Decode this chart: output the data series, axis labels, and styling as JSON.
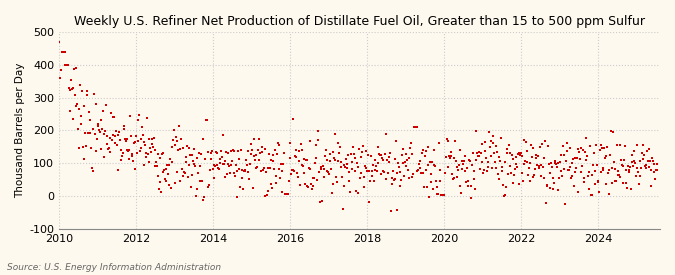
{
  "title": "Weekly U.S. Refiner Net Production of Distillate Fuel Oil, Greater than 15 to 500 ppm Sulfur",
  "ylabel": "Thousand Barrels per Day",
  "source": "Source: U.S. Energy Information Administration",
  "background_color": "#fef9ef",
  "dot_color": "#cc0000",
  "dot_size": 2.5,
  "ylim": [
    -100,
    500
  ],
  "yticks": [
    -100,
    0,
    100,
    200,
    300,
    400,
    500
  ],
  "xlim_start": 2010.0,
  "xlim_end": 2025.6,
  "xticks": [
    2010,
    2012,
    2014,
    2016,
    2018,
    2020,
    2022,
    2024
  ],
  "grid_color": "#cccccc",
  "grid_style": ":",
  "seed": 7
}
